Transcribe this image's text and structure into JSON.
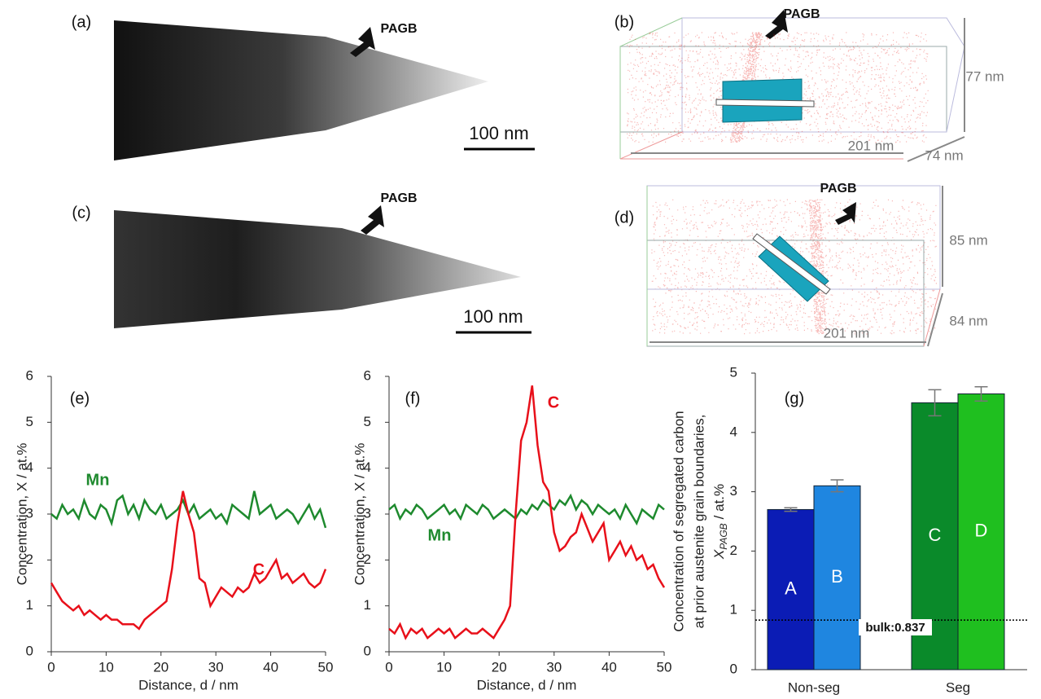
{
  "panels": [
    {
      "label": "(a)",
      "annotation": "PAGB",
      "scale_bar": "100 nm"
    },
    {
      "label": "(b)",
      "annotation": "PAGB",
      "dimensions": [
        "77 nm",
        "201 nm",
        "74 nm"
      ]
    },
    {
      "label": "(c)",
      "annotation": "PAGB",
      "scale_bar": "100 nm"
    },
    {
      "label": "(d)",
      "annotation": "PAGB",
      "dimensions": [
        "85 nm",
        "201 nm",
        "84 nm"
      ]
    }
  ],
  "chart_data": [
    {
      "type": "line",
      "panel_label": "(e)",
      "x": [
        0,
        1,
        2,
        3,
        4,
        5,
        6,
        7,
        8,
        9,
        10,
        11,
        12,
        13,
        14,
        15,
        16,
        17,
        18,
        19,
        20,
        21,
        22,
        23,
        24,
        25,
        26,
        27,
        28,
        29,
        30,
        31,
        32,
        33,
        34,
        35,
        36,
        37,
        38,
        39,
        40,
        41,
        42,
        43,
        44,
        45,
        46,
        47,
        48,
        49,
        50
      ],
      "series": [
        {
          "name": "Mn",
          "color": "#1e8a2e",
          "values": [
            3.0,
            2.9,
            3.2,
            3.0,
            3.1,
            2.9,
            3.3,
            3.0,
            2.9,
            3.2,
            3.1,
            2.8,
            3.3,
            3.4,
            3.0,
            3.2,
            2.9,
            3.3,
            3.1,
            3.0,
            3.2,
            2.9,
            3.0,
            3.1,
            3.3,
            3.0,
            3.2,
            2.9,
            3.0,
            3.1,
            2.9,
            3.0,
            2.8,
            3.2,
            3.1,
            3.0,
            2.9,
            3.5,
            3.0,
            3.1,
            3.2,
            2.9,
            3.0,
            3.1,
            3.0,
            2.8,
            3.0,
            3.2,
            2.9,
            3.1,
            2.7
          ]
        },
        {
          "name": "C",
          "color": "#e8101a",
          "values": [
            1.5,
            1.3,
            1.1,
            1.0,
            0.9,
            1.0,
            0.8,
            0.9,
            0.8,
            0.7,
            0.8,
            0.7,
            0.7,
            0.6,
            0.6,
            0.6,
            0.5,
            0.7,
            0.8,
            0.9,
            1.0,
            1.1,
            1.8,
            2.8,
            3.5,
            3.0,
            2.6,
            1.6,
            1.5,
            1.0,
            1.2,
            1.4,
            1.3,
            1.2,
            1.4,
            1.3,
            1.4,
            1.7,
            1.5,
            1.6,
            1.8,
            2.0,
            1.6,
            1.7,
            1.5,
            1.6,
            1.7,
            1.5,
            1.4,
            1.5,
            1.8
          ]
        }
      ],
      "xlim": [
        0,
        50
      ],
      "ylim": [
        0,
        6
      ],
      "xticks": [
        0,
        10,
        20,
        30,
        40,
        50
      ],
      "yticks": [
        0,
        1,
        2,
        3,
        4,
        5,
        6
      ],
      "xlabel": "Distance, d / nm",
      "ylabel": "Concentration, X / at.%"
    },
    {
      "type": "line",
      "panel_label": "(f)",
      "x": [
        0,
        1,
        2,
        3,
        4,
        5,
        6,
        7,
        8,
        9,
        10,
        11,
        12,
        13,
        14,
        15,
        16,
        17,
        18,
        19,
        20,
        21,
        22,
        23,
        24,
        25,
        26,
        27,
        28,
        29,
        30,
        31,
        32,
        33,
        34,
        35,
        36,
        37,
        38,
        39,
        40,
        41,
        42,
        43,
        44,
        45,
        46,
        47,
        48,
        49,
        50
      ],
      "series": [
        {
          "name": "Mn",
          "color": "#1e8a2e",
          "values": [
            3.1,
            3.2,
            2.9,
            3.1,
            3.0,
            3.2,
            3.1,
            2.9,
            3.0,
            3.1,
            3.2,
            3.0,
            3.1,
            2.9,
            3.2,
            3.1,
            3.0,
            3.2,
            3.1,
            2.9,
            3.0,
            3.1,
            3.0,
            2.9,
            3.1,
            3.0,
            3.2,
            3.1,
            3.3,
            3.2,
            3.1,
            3.3,
            3.2,
            3.4,
            3.1,
            3.3,
            3.2,
            3.0,
            3.2,
            3.1,
            3.0,
            3.1,
            2.9,
            3.2,
            3.0,
            2.8,
            3.1,
            3.0,
            2.9,
            3.2,
            3.1
          ]
        },
        {
          "name": "C",
          "color": "#e8101a",
          "values": [
            0.5,
            0.4,
            0.6,
            0.3,
            0.5,
            0.4,
            0.5,
            0.3,
            0.4,
            0.5,
            0.4,
            0.5,
            0.3,
            0.4,
            0.5,
            0.4,
            0.4,
            0.5,
            0.4,
            0.3,
            0.5,
            0.7,
            1.0,
            3.0,
            4.6,
            5.0,
            5.8,
            4.5,
            3.7,
            3.5,
            2.6,
            2.2,
            2.3,
            2.5,
            2.6,
            3.0,
            2.7,
            2.4,
            2.6,
            2.8,
            2.0,
            2.2,
            2.4,
            2.1,
            2.3,
            2.0,
            2.1,
            1.8,
            1.9,
            1.6,
            1.4
          ]
        }
      ],
      "xlim": [
        0,
        50
      ],
      "ylim": [
        0,
        6
      ],
      "xticks": [
        0,
        10,
        20,
        30,
        40,
        50
      ],
      "yticks": [
        0,
        1,
        2,
        3,
        4,
        5,
        6
      ],
      "xlabel": "Distance, d / nm",
      "ylabel": "Concentration, X / at.%"
    },
    {
      "type": "bar",
      "panel_label": "(g)",
      "categories": [
        "A",
        "B",
        "C",
        "D"
      ],
      "groups": [
        "Non-seg",
        "Seg"
      ],
      "values": [
        2.7,
        3.1,
        4.5,
        4.65
      ],
      "errors": [
        0.03,
        0.1,
        0.22,
        0.12
      ],
      "colors": [
        "#0b1cb5",
        "#1f86e0",
        "#0a8a2a",
        "#1fbf1f"
      ],
      "ylim": [
        0,
        5
      ],
      "yticks": [
        0,
        1,
        2,
        3,
        4,
        5
      ],
      "ylabel": [
        "Concentration of segregated carbon",
        "at prior austenite grain boundaries,"
      ],
      "ylabel_symbol": "X",
      "ylabel_subscript": "PAGB",
      "ylabel_unit": "/ at.%",
      "reference_line": {
        "value": 0.837,
        "label": "bulk:0.837"
      }
    }
  ]
}
